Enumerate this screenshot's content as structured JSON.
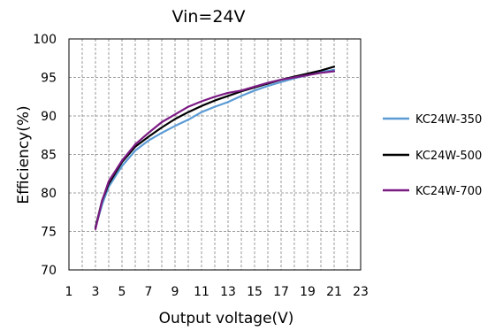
{
  "chart_data": {
    "type": "line",
    "title": "Vin=24V",
    "xlabel": "Output voltage(V)",
    "ylabel": "Efficiency(%)",
    "xlim": [
      1,
      23
    ],
    "ylim": [
      70,
      100
    ],
    "xticks": [
      1,
      3,
      5,
      7,
      9,
      11,
      13,
      15,
      17,
      19,
      21,
      23
    ],
    "yticks": [
      70,
      75,
      80,
      85,
      90,
      95,
      100
    ],
    "grid": "dashed",
    "legend_position": "right",
    "series": [
      {
        "name": "KC24W-350",
        "color": "#5b9bd5",
        "x": [
          3,
          3.5,
          4,
          5,
          6,
          7,
          8,
          9,
          10,
          11,
          12,
          13,
          14,
          15,
          16,
          17,
          18,
          19,
          20,
          21
        ],
        "y": [
          75.5,
          78.5,
          80.8,
          83.5,
          85.5,
          86.8,
          87.8,
          88.7,
          89.5,
          90.5,
          91.2,
          91.8,
          92.6,
          93.3,
          93.9,
          94.4,
          94.9,
          95.3,
          95.7,
          96.0
        ]
      },
      {
        "name": "KC24W-500",
        "color": "#000000",
        "x": [
          3,
          3.5,
          4,
          5,
          6,
          7,
          8,
          9,
          10,
          11,
          12,
          13,
          14,
          15,
          16,
          17,
          18,
          19,
          20,
          21
        ],
        "y": [
          75.5,
          79.0,
          81.2,
          84.0,
          86.0,
          87.3,
          88.5,
          89.6,
          90.5,
          91.3,
          92.0,
          92.6,
          93.2,
          93.7,
          94.2,
          94.7,
          95.1,
          95.5,
          95.9,
          96.4
        ]
      },
      {
        "name": "KC24W-700",
        "color": "#7b1a83",
        "x": [
          3,
          3.5,
          4,
          5,
          6,
          7,
          8,
          9,
          10,
          11,
          12,
          13,
          14,
          15,
          16,
          17,
          18,
          19,
          20,
          21
        ],
        "y": [
          75.3,
          79.0,
          81.5,
          84.2,
          86.3,
          87.8,
          89.2,
          90.2,
          91.2,
          91.9,
          92.5,
          93.0,
          93.3,
          93.8,
          94.3,
          94.7,
          95.0,
          95.3,
          95.6,
          95.8
        ]
      }
    ]
  }
}
